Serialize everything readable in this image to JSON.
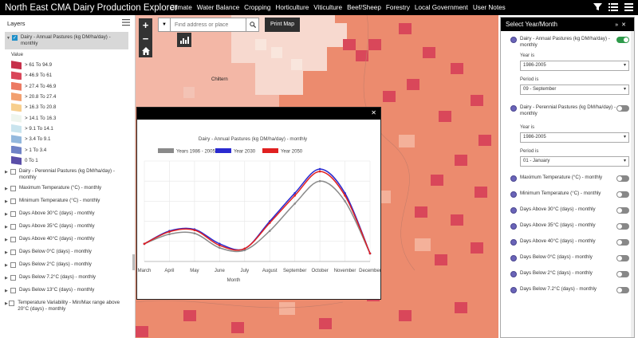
{
  "app": {
    "title": "North East CMA Dairy Production Explorer",
    "nav": [
      "Climate",
      "Water Balance",
      "Cropping",
      "Horticulture",
      "Viticulture",
      "Beef/Sheep",
      "Forestry",
      "Local Government",
      "User Notes"
    ]
  },
  "layers": {
    "title": "Layers",
    "selected_layer": "Dairy - Annual Pastures (kg DM/ha/day) - monthly",
    "legend_title": "Value",
    "legend": [
      {
        "label": "> 61 To 94.9",
        "color": "#c6304a"
      },
      {
        "label": "> 46.9 To 61",
        "color": "#d9475a"
      },
      {
        "label": "> 27.4 To 46.9",
        "color": "#ec7a63"
      },
      {
        "label": "> 20.8 To 27.4",
        "color": "#f2a070"
      },
      {
        "label": "> 16.3 To 20.8",
        "color": "#f7cf8e"
      },
      {
        "label": "> 14.1 To 16.3",
        "color": "#eef5ee"
      },
      {
        "label": "> 9.1 To 14.1",
        "color": "#c9e4ee"
      },
      {
        "label": "> 3.4 To 9.1",
        "color": "#93b8dd"
      },
      {
        "label": "> 1 To 3.4",
        "color": "#6f82c6"
      },
      {
        "label": "0 To 1",
        "color": "#5a4ea8"
      }
    ],
    "others": [
      "Dairy - Perennial Pastures (kg DM/ha/day) - monthly",
      "Maximum Temperature (°C) - monthly",
      "Minimum Temperature (°C) - monthly",
      "Days Above 30°C (days) - monthly",
      "Days Above 35°C (days) - monthly",
      "Days Above 40°C (days) - monthly",
      "Days Below 0°C (days) - monthly",
      "Days Below 2°C (days) - monthly",
      "Days Below 7.2°C (days) - monthly",
      "Days Below 13°C (days) - monthly",
      "Temperature Variability - Min/Max range above 20°C (days) - monthly"
    ]
  },
  "map": {
    "search_placeholder": "Find address or place",
    "print_label": "Print Map",
    "place_label": "Chiltern",
    "zoom_in": "+",
    "zoom_out": "−"
  },
  "panel": {
    "title": "Select Year/Month",
    "layer1": {
      "label": "Dairy - Annual Pastures (kg DM/ha/day) - monthly",
      "year_label": "Year is",
      "year": "1986-2005",
      "period_label": "Period is",
      "period": "09 - September"
    },
    "layer2": {
      "label": "Dairy - Perennial Pastures (kg DM/ha/day) - monthly",
      "year_label": "Year is",
      "year": "1986-2005",
      "period_label": "Period is",
      "period": "01 - January"
    },
    "others": [
      "Maximum Temperature (°C) - monthly",
      "Minimum Temperature (°C) - monthly",
      "Days Above 30°C (days) - monthly",
      "Days Above 35°C (days) - monthly",
      "Days Above 40°C (days) - monthly",
      "Days Below 0°C (days) - monthly",
      "Days Below 2°C (days) - monthly",
      "Days Below 7.2°C (days) - monthly"
    ]
  },
  "chart_data": {
    "type": "line",
    "title": "Dairy - Annual Pastures (kg DM/ha/day) - monthly",
    "xlabel": "Month",
    "ylabel": "",
    "categories": [
      "March",
      "April",
      "May",
      "June",
      "July",
      "August",
      "September",
      "October",
      "November",
      "December"
    ],
    "series": [
      {
        "name": "Years 1986 - 2005",
        "color": "#8a8a8a",
        "values": [
          22,
          34,
          35,
          17,
          14,
          38,
          72,
          100,
          75,
          10
        ]
      },
      {
        "name": "Year 2030",
        "color": "#2a2ad0",
        "values": [
          22,
          38,
          40,
          22,
          16,
          50,
          85,
          115,
          85,
          10
        ]
      },
      {
        "name": "Year 2050",
        "color": "#e02020",
        "values": [
          22,
          37,
          39,
          20,
          16,
          48,
          82,
          112,
          82,
          10
        ]
      }
    ],
    "ylim": [
      0,
      125
    ],
    "grid": true,
    "legend": "top"
  }
}
